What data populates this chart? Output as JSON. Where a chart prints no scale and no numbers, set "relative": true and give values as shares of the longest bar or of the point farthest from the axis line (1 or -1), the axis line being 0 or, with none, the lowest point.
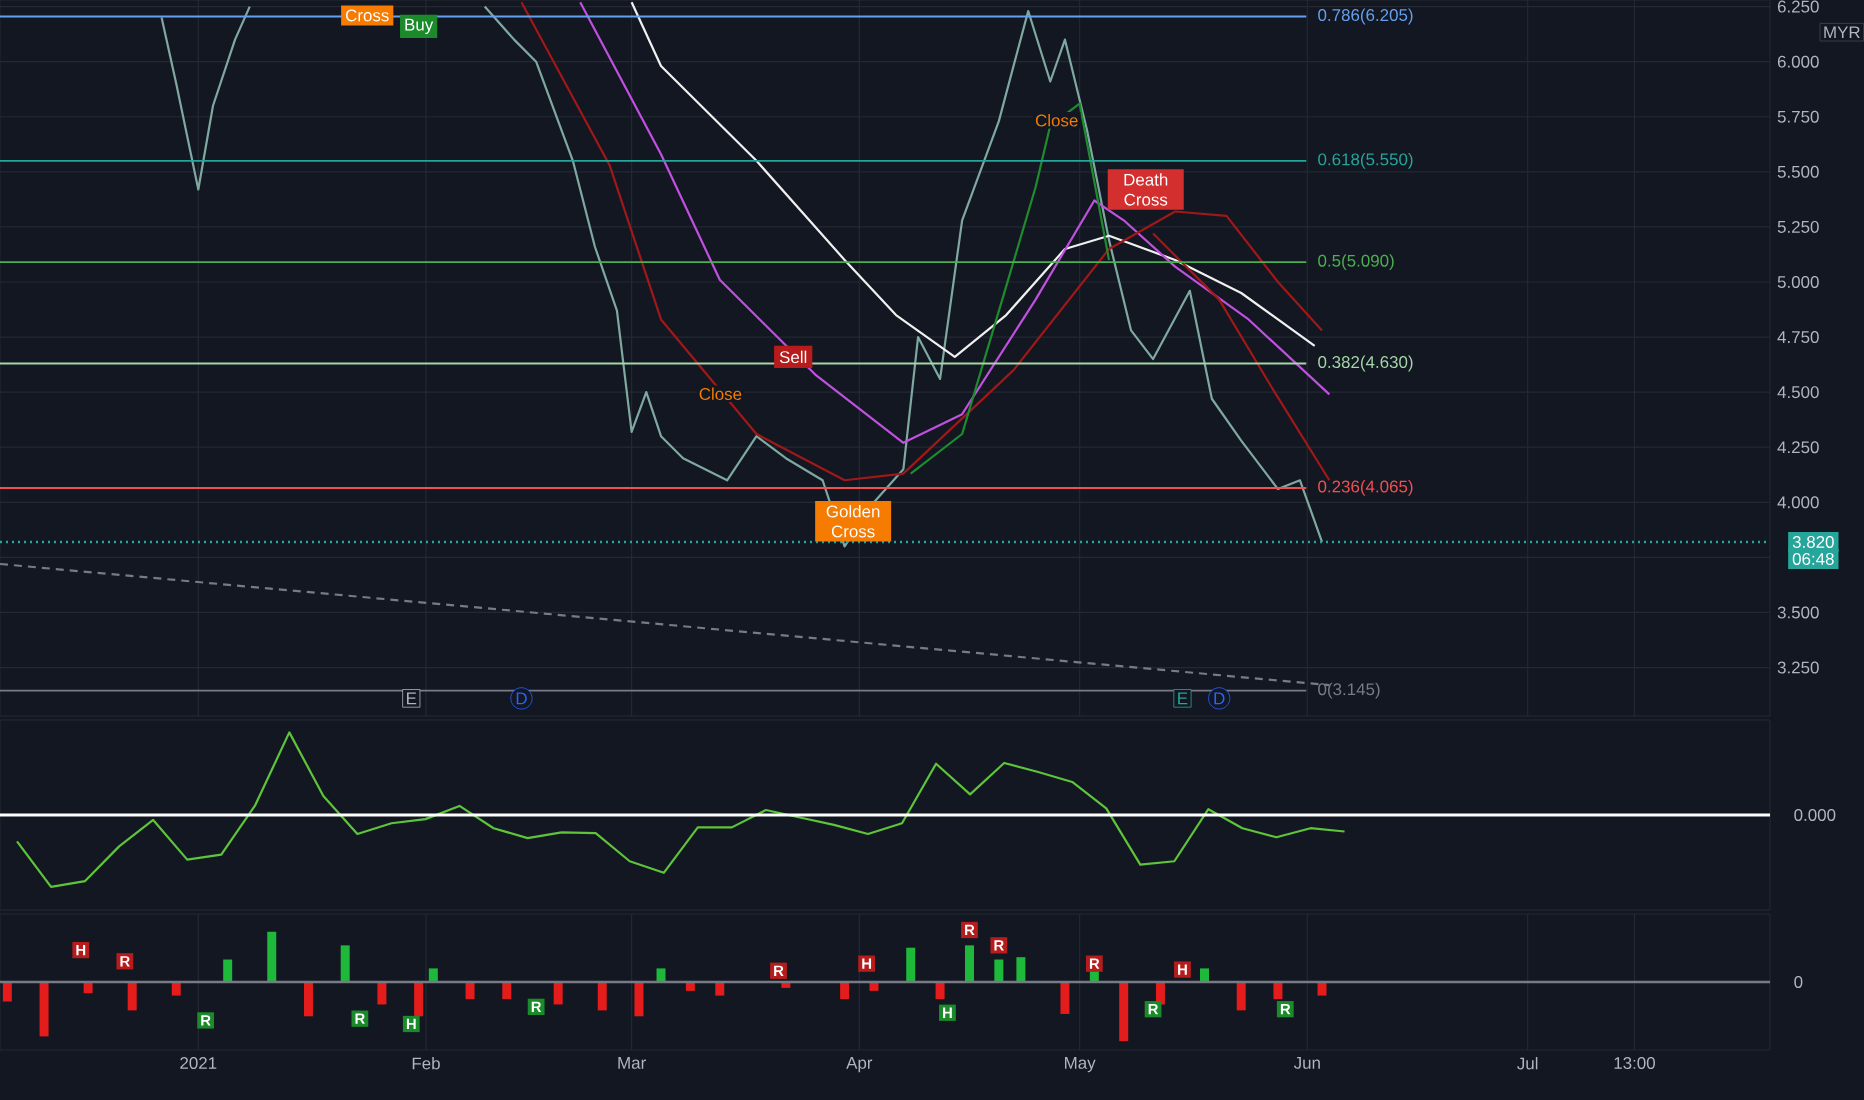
{
  "chart_data": [
    {
      "type": "line",
      "xlim": [
        "2020-12-05",
        "2021-08-03"
      ],
      "ylim": [
        3.03,
        6.28
      ],
      "grid": true,
      "tick_labels": "y",
      "xticks": [
        {
          "value": "2021-01-01",
          "label": null
        },
        {
          "value": "2021-02-01",
          "label": null
        },
        {
          "value": "2021-03-01",
          "label": null
        },
        {
          "value": "2021-04-01",
          "label": null
        },
        {
          "value": "2021-05-01",
          "label": null
        },
        {
          "value": "2021-06-01",
          "label": null
        },
        {
          "value": "2021-07-01",
          "label": null
        },
        {
          "value": "2021-07-15T13:00",
          "label": null
        }
      ],
      "yticks": [
        {
          "value": 3.25,
          "label": "3.250"
        },
        {
          "value": 3.5,
          "label": "3.500"
        },
        {
          "value": 3.75,
          "label": null
        },
        {
          "value": 4.0,
          "label": "4.000"
        },
        {
          "value": 4.25,
          "label": "4.250"
        },
        {
          "value": 4.5,
          "label": "4.500"
        },
        {
          "value": 4.75,
          "label": "4.750"
        },
        {
          "value": 5.0,
          "label": "5.000"
        },
        {
          "value": 5.25,
          "label": "5.250"
        },
        {
          "value": 5.5,
          "label": "5.500"
        },
        {
          "value": 5.75,
          "label": "5.750"
        },
        {
          "value": 6.0,
          "label": "6.000"
        },
        {
          "value": 6.25,
          "label": "6.250"
        }
      ],
      "series": [
        {
          "color": "#7fa8a0",
          "x": [
            "2020-12-27",
            "2020-12-29",
            "2021-01-01",
            "2021-01-03",
            "2021-01-06",
            "2021-01-08",
            "2021-01-24",
            "2021-02-09",
            "2021-02-13",
            "2021-02-16",
            "2021-02-21",
            "2021-02-24",
            "2021-02-27",
            "2021-03-01",
            "2021-03-03",
            "2021-03-05",
            "2021-03-08",
            "2021-03-14",
            "2021-03-18",
            "2021-03-22",
            "2021-03-27",
            "2021-03-30",
            "2021-04-03",
            "2021-04-07",
            "2021-04-09",
            "2021-04-12",
            "2021-04-15",
            "2021-04-20",
            "2021-04-24",
            "2021-04-27",
            "2021-04-29",
            "2021-05-02",
            "2021-05-05",
            "2021-05-08",
            "2021-05-11",
            "2021-05-16",
            "2021-05-19",
            "2021-05-23",
            "2021-05-28",
            "2021-05-31",
            "2021-06-03"
          ],
          "values": [
            6.2,
            5.9,
            5.42,
            5.8,
            6.1,
            6.25,
            null,
            6.25,
            6.1,
            6.0,
            5.55,
            5.16,
            4.87,
            4.32,
            4.5,
            4.3,
            4.2,
            4.1,
            4.3,
            4.2,
            4.1,
            3.8,
            4.0,
            4.15,
            4.75,
            4.56,
            5.28,
            5.73,
            6.23,
            5.91,
            6.1,
            5.69,
            5.19,
            4.78,
            4.65,
            4.96,
            4.47,
            4.28,
            4.06,
            4.1,
            3.82
          ]
        },
        {
          "color": "#f0f0f0",
          "x": [
            "2021-03-01",
            "2021-03-05",
            "2021-03-18",
            "2021-03-30",
            "2021-04-06",
            "2021-04-14",
            "2021-04-21",
            "2021-04-29",
            "2021-05-05",
            "2021-05-14",
            "2021-05-23",
            "2021-06-02"
          ],
          "values": [
            6.27,
            5.98,
            5.55,
            5.1,
            4.85,
            4.66,
            4.85,
            5.15,
            5.21,
            5.1,
            4.95,
            4.71
          ]
        },
        {
          "color": "#c050e0",
          "x": [
            "2021-02-22",
            "2021-03-05",
            "2021-03-13",
            "2021-03-26",
            "2021-04-07",
            "2021-04-15",
            "2021-04-25",
            "2021-05-03",
            "2021-05-07",
            "2021-05-14",
            "2021-05-24",
            "2021-06-04"
          ],
          "values": [
            6.27,
            5.58,
            5.01,
            4.58,
            4.27,
            4.4,
            4.92,
            5.37,
            5.28,
            5.07,
            4.83,
            4.49
          ]
        },
        {
          "color": "#a01818",
          "x": [
            "2021-02-14",
            "2021-02-26",
            "2021-03-05",
            "2021-03-18",
            "2021-03-30",
            "2021-04-07",
            "2021-04-22",
            "2021-05-05",
            "2021-05-14",
            "2021-05-21",
            "2021-05-28",
            "2021-06-03"
          ],
          "values": [
            6.27,
            5.53,
            4.83,
            4.31,
            4.1,
            4.13,
            4.6,
            5.15,
            5.32,
            5.3,
            5.0,
            4.78
          ]
        },
        {
          "color": "#a01818",
          "x": [
            "2021-05-11",
            "2021-05-20",
            "2021-05-27",
            "2021-06-04"
          ],
          "values": [
            5.22,
            4.92,
            4.53,
            4.1
          ]
        },
        {
          "color": "#1e8c2e",
          "x": [
            "2021-04-08",
            "2021-04-15",
            "2021-04-21",
            "2021-04-25",
            "2021-04-27",
            "2021-05-01",
            "2021-05-05"
          ],
          "values": [
            4.13,
            4.31,
            4.98,
            5.43,
            5.71,
            5.81,
            5.1
          ]
        },
        {
          "color": "#787b86",
          "line_style": "dashed",
          "x": [
            "2020-12-05",
            "2021-06-04"
          ],
          "values": [
            3.72,
            3.17
          ]
        }
      ],
      "ref_lines": [
        {
          "axis": "y",
          "value": 6.205,
          "label": "0.786(6.205)",
          "color": "#64a0f0"
        },
        {
          "axis": "y",
          "value": 5.55,
          "label": "0.618(5.550)",
          "color": "#26a69a"
        },
        {
          "axis": "y",
          "value": 5.09,
          "label": "0.5(5.090)",
          "color": "#4caf50"
        },
        {
          "axis": "y",
          "value": 4.63,
          "label": "0.382(4.630)",
          "color": "#a5d6a7"
        },
        {
          "axis": "y",
          "value": 4.065,
          "label": "0.236(4.065)",
          "color": "#f05050"
        },
        {
          "axis": "y",
          "value": 3.145,
          "label": "0(3.145)",
          "color": "#787b86"
        },
        {
          "axis": "y",
          "value": 3.82,
          "label": "3.820",
          "color": "#26a69a",
          "line_style": "dotted"
        }
      ],
      "annotations": [
        {
          "text": "Cross",
          "x": "2021-01-24",
          "y": 6.21
        },
        {
          "text": "Buy",
          "x": "2021-01-31",
          "y": 6.16
        },
        {
          "text": "Sell",
          "x": "2021-03-23",
          "y": 4.66
        },
        {
          "text": "Death Cross",
          "x": "2021-05-10",
          "y": 5.42
        },
        {
          "text": "E",
          "x": "2021-01-30",
          "y": 3.11
        },
        {
          "text": "D",
          "x": "2021-02-14",
          "y": 3.11
        },
        {
          "text": "E",
          "x": "2021-05-15",
          "y": 3.11
        },
        {
          "text": "D",
          "x": "2021-05-20",
          "y": 3.11
        },
        "Close",
        "Close",
        "Golden Cross",
        "MYR",
        "06:48"
      ]
    },
    {
      "type": "line",
      "relative": true,
      "categories": [
        null,
        null,
        null,
        null,
        null,
        null,
        null,
        null,
        null,
        null,
        null,
        null,
        null,
        null,
        null,
        null,
        null,
        null,
        null,
        null,
        null,
        null,
        null,
        null,
        null,
        null,
        null,
        null,
        null,
        null,
        null,
        null,
        null,
        null,
        null,
        null,
        null,
        null,
        null,
        null,
        null,
        null,
        null,
        null,
        null,
        null,
        null,
        null,
        null,
        null,
        null,
        null
      ],
      "series": [
        {
          "color": "#5ec43a",
          "values": [
            -0.32,
            -0.87,
            -0.8,
            -0.38,
            -0.06,
            -0.54,
            -0.48,
            0.12,
            1,
            0.23,
            -0.23,
            -0.1,
            -0.05,
            0.11,
            -0.16,
            -0.28,
            -0.21,
            -0.22,
            -0.56,
            -0.7,
            -0.15,
            -0.15,
            0.06,
            -0.03,
            -0.12,
            -0.23,
            -0.1,
            0.62,
            0.25,
            0.63,
            0.52,
            0.4,
            0.08,
            -0.6,
            -0.56,
            0.07,
            -0.16,
            -0.27,
            -0.16,
            -0.2,
            null,
            null,
            null,
            null,
            null,
            null,
            null,
            null,
            null,
            null,
            null,
            null
          ]
        }
      ],
      "ref_lines": [
        {
          "axis": "y",
          "value": 0,
          "label": "0.000",
          "color": "#ffffff"
        }
      ]
    },
    {
      "type": "bar",
      "relative": true,
      "xlim": [
        "2020-12-05",
        "2021-08-03"
      ],
      "grid": "x",
      "tick_labels": "x",
      "xticks": [
        {
          "value": "2021-01-01",
          "label": "2021"
        },
        {
          "value": "2021-02-01",
          "label": "Feb"
        },
        {
          "value": "2021-03-01",
          "label": "Mar"
        },
        {
          "value": "2021-04-01",
          "label": "Apr"
        },
        {
          "value": "2021-05-01",
          "label": "May"
        },
        {
          "value": "2021-06-01",
          "label": "Jun"
        },
        {
          "value": "2021-07-01",
          "label": "Jul"
        },
        {
          "value": "2021-07-15T13:00",
          "label": "13:00"
        }
      ],
      "series": [
        {
          "x": [
            "2020-12-06",
            "2020-12-11",
            "2020-12-17",
            "2020-12-23",
            "2020-12-29",
            "2021-01-05",
            "2021-01-11",
            "2021-01-16",
            "2021-01-21",
            "2021-01-26",
            "2021-01-31",
            "2021-02-02",
            "2021-02-07",
            "2021-02-12",
            "2021-02-19",
            "2021-02-25",
            "2021-03-02",
            "2021-03-05",
            "2021-03-09",
            "2021-03-13",
            "2021-03-22",
            "2021-03-30",
            "2021-04-03",
            "2021-04-08",
            "2021-04-12",
            "2021-04-16",
            "2021-04-20",
            "2021-04-23",
            "2021-04-29",
            "2021-05-03",
            "2021-05-07",
            "2021-05-12",
            "2021-05-18",
            "2021-05-23",
            "2021-05-28",
            "2021-06-03"
          ],
          "values": [
            -0.33,
            -0.92,
            -0.19,
            -0.48,
            -0.23,
            0.38,
            0.85,
            -0.58,
            0.62,
            -0.38,
            -0.58,
            0.23,
            -0.29,
            -0.29,
            -0.38,
            -0.48,
            -0.58,
            0.23,
            -0.15,
            -0.23,
            -0.1,
            -0.29,
            -0.15,
            0.58,
            -0.29,
            0.62,
            0.38,
            0.42,
            -0.54,
            0.19,
            -1,
            -0.38,
            0.23,
            -0.48,
            -0.29,
            -0.23
          ],
          "colors": [
            "#e51c1c",
            "#e51c1c",
            "#e51c1c",
            "#e51c1c",
            "#e51c1c",
            "#1eb83a",
            "#1eb83a",
            "#e51c1c",
            "#1eb83a",
            "#e51c1c",
            "#e51c1c",
            "#1eb83a",
            "#e51c1c",
            "#e51c1c",
            "#e51c1c",
            "#e51c1c",
            "#e51c1c",
            "#1eb83a",
            "#e51c1c",
            "#e51c1c",
            "#e51c1c",
            "#e51c1c",
            "#e51c1c",
            "#1eb83a",
            "#e51c1c",
            "#1eb83a",
            "#1eb83a",
            "#1eb83a",
            "#e51c1c",
            "#1eb83a",
            "#e51c1c",
            "#e51c1c",
            "#1eb83a",
            "#e51c1c",
            "#e51c1c",
            "#e51c1c"
          ]
        }
      ],
      "ref_lines": [
        {
          "axis": "y",
          "value": 0,
          "label": "0",
          "color": "#787b86"
        }
      ],
      "annotations": [
        {
          "text": "H",
          "x": "2020-12-16",
          "y": 0.54
        },
        {
          "text": "R",
          "x": "2020-12-22",
          "y": 0.35
        },
        {
          "text": "R",
          "x": "2021-01-02",
          "y": -0.65
        },
        {
          "text": "R",
          "x": "2021-01-23",
          "y": -0.62
        },
        {
          "text": "H",
          "x": "2021-01-30",
          "y": -0.71
        },
        {
          "text": "R",
          "x": "2021-02-16",
          "y": -0.42
        },
        {
          "text": "R",
          "x": "2021-03-21",
          "y": 0.19
        },
        {
          "text": "H",
          "x": "2021-04-02",
          "y": 0.31
        },
        {
          "text": "H",
          "x": "2021-04-13",
          "y": -0.52
        },
        {
          "text": "R",
          "x": "2021-04-16",
          "y": 0.88
        },
        {
          "text": "R",
          "x": "2021-04-20",
          "y": 0.62
        },
        {
          "text": "R",
          "x": "2021-05-03",
          "y": 0.31
        },
        {
          "text": "R",
          "x": "2021-05-11",
          "y": -0.46
        },
        {
          "text": "H",
          "x": "2021-05-15",
          "y": 0.21
        },
        {
          "text": "R",
          "x": "2021-05-29",
          "y": -0.46
        }
      ]
    }
  ]
}
